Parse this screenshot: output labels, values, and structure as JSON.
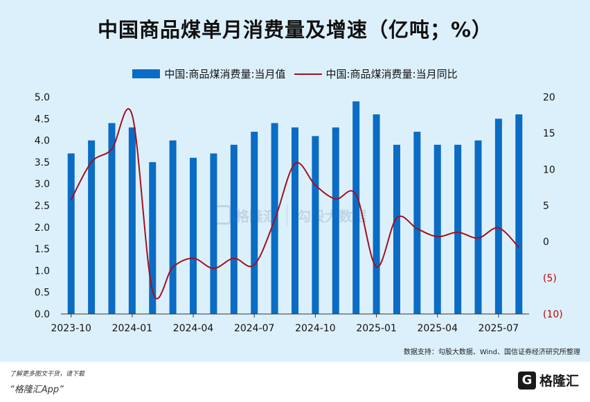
{
  "title": "中国商品煤单月消费量及增速（亿吨；%）",
  "legend": {
    "bar": "中国:商品煤消费量:当月值",
    "line": "中国:商品煤消费量:当月同比"
  },
  "source": "数据支持：勾股大数据、Wind、国信证券经济研究所整理",
  "footer": {
    "line1": "了解更多图文干货，请下载",
    "line2": "“格隆汇App”"
  },
  "brand": {
    "logo_letter": "G",
    "name": "格隆汇"
  },
  "watermark": {
    "left": "格隆汇",
    "right": "勾股大数据"
  },
  "colors": {
    "bar": "#0a6cc4",
    "line": "#a30f1e",
    "background": "#dcf0fb"
  },
  "chart_data": {
    "type": "bar",
    "x_tick_labels": [
      "2023-10",
      "2024-01",
      "2024-04",
      "2024-07",
      "2024-10",
      "2025-01",
      "2025-04",
      "2025-07"
    ],
    "categories": [
      "2023-10",
      "2023-11",
      "2023-12",
      "2024-01",
      "2024-02",
      "2024-03",
      "2024-04",
      "2024-05",
      "2024-06",
      "2024-07",
      "2024-08",
      "2024-09",
      "2024-10",
      "2024-11",
      "2024-12",
      "2025-01",
      "2025-02",
      "2025-03",
      "2025-04",
      "2025-05",
      "2025-06",
      "2025-07",
      "2025-08"
    ],
    "series": [
      {
        "name": "中国:商品煤消费量:当月值",
        "type": "bar",
        "axis": "left",
        "values": [
          3.7,
          4.0,
          4.4,
          4.3,
          3.5,
          4.0,
          3.6,
          3.7,
          3.9,
          4.2,
          4.4,
          4.3,
          4.1,
          4.3,
          4.9,
          4.6,
          3.9,
          4.2,
          3.9,
          3.9,
          4.0,
          4.5,
          4.6
        ]
      },
      {
        "name": "中国:商品煤消费量:当月同比",
        "type": "line",
        "axis": "right",
        "values": [
          5.8,
          11.0,
          12.8,
          17.5,
          -6.8,
          -3.5,
          -2.3,
          -3.7,
          -2.3,
          -3.2,
          3.0,
          10.8,
          7.8,
          5.9,
          6.5,
          -3.5,
          3.3,
          1.8,
          0.7,
          1.3,
          0.5,
          1.9,
          -0.8
        ]
      }
    ],
    "y_left": {
      "min": 0,
      "max": 5,
      "ticks": [
        0.0,
        0.5,
        1.0,
        1.5,
        2.0,
        2.5,
        3.0,
        3.5,
        4.0,
        4.5,
        5.0
      ],
      "tick_labels": [
        "0.0",
        "0.5",
        "1.0",
        "1.5",
        "2.0",
        "2.5",
        "3.0",
        "3.5",
        "4.0",
        "4.5",
        "5.0"
      ]
    },
    "y_right": {
      "min": -10,
      "max": 20,
      "ticks": [
        -10,
        -5,
        0,
        5,
        10,
        15,
        20
      ],
      "tick_labels": [
        "(10)",
        "(5)",
        "0",
        "5",
        "10",
        "15",
        "20"
      ],
      "negative_color": "#c00000"
    },
    "grid": false,
    "legend_position": "top-center"
  }
}
